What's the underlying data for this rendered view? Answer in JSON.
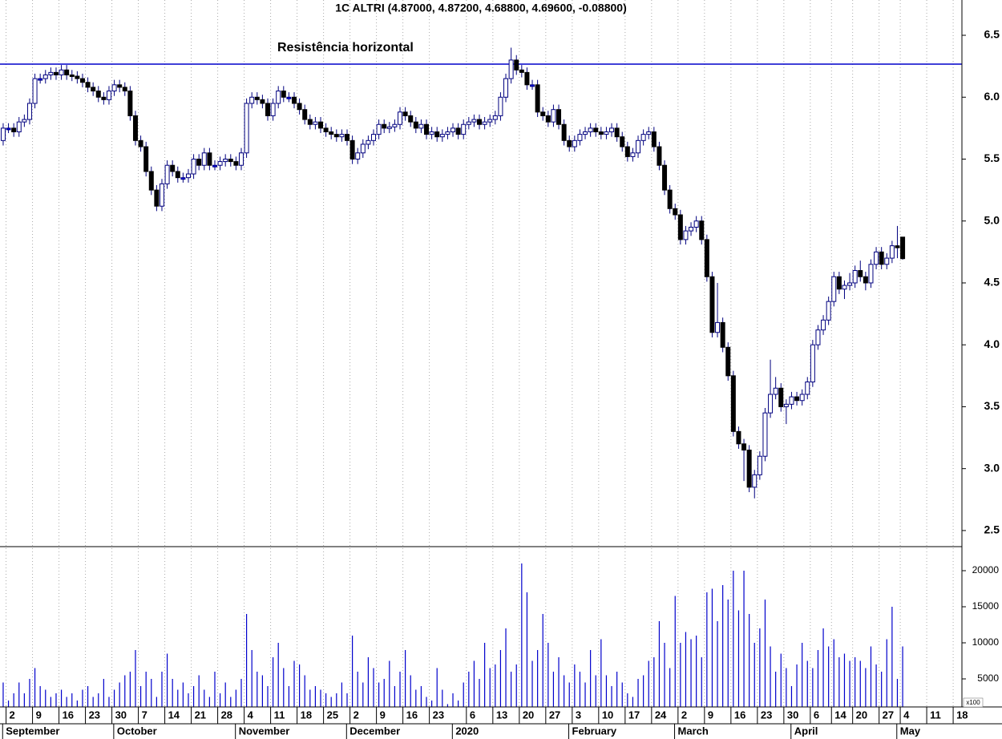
{
  "chart_data": {
    "type": "candlestick",
    "title": "1C ALTRI (4.87000, 4.87200, 4.68800, 4.69600, -0.08800)",
    "annotation": {
      "text": "Resistência horizontal",
      "value": 6.267,
      "color": "#0000cc"
    },
    "x": [
      -1,
      0,
      1,
      2,
      3,
      4,
      5,
      6,
      7,
      8,
      9,
      10,
      11,
      12,
      13,
      14,
      15,
      16,
      17,
      18,
      19,
      20,
      21,
      22,
      23,
      24,
      25,
      26,
      27,
      28,
      29,
      30,
      31,
      32,
      33,
      34,
      35,
      36,
      37,
      38,
      39,
      40,
      41,
      42,
      43,
      44,
      45,
      46,
      47,
      48,
      49,
      50,
      51,
      52,
      53,
      54,
      55,
      56,
      57,
      58,
      59,
      60,
      61,
      62,
      63,
      64,
      65,
      66,
      67,
      68,
      69,
      70,
      71,
      72,
      73,
      74,
      75,
      76,
      77,
      78,
      79,
      80,
      81,
      82,
      83,
      84,
      85,
      86,
      87,
      88,
      89,
      90,
      91,
      92,
      93,
      94,
      95,
      96,
      97,
      98,
      99,
      100,
      101,
      102,
      103,
      104,
      105,
      106,
      107,
      108,
      109,
      110,
      111,
      112,
      113,
      114,
      115,
      116,
      117,
      118,
      119,
      120,
      121,
      122,
      123,
      124,
      125,
      126,
      127,
      128,
      129,
      130,
      131,
      132,
      133,
      134,
      135,
      136,
      137,
      138,
      139,
      140,
      141,
      142,
      143,
      144,
      145,
      146,
      147,
      148,
      149,
      150,
      151,
      152,
      153,
      154,
      155,
      156,
      157,
      158,
      159,
      160,
      161,
      162,
      163,
      164,
      165,
      166,
      167,
      168,
      169
    ],
    "open": [
      5.65,
      5.75,
      5.75,
      5.72,
      5.8,
      5.82,
      5.95,
      6.15,
      6.15,
      6.18,
      6.2,
      6.18,
      6.22,
      6.18,
      6.17,
      6.15,
      6.12,
      6.08,
      6.05,
      6.0,
      5.98,
      6.05,
      6.1,
      6.08,
      6.05,
      5.85,
      5.65,
      5.6,
      5.4,
      5.25,
      5.12,
      5.3,
      5.45,
      5.4,
      5.35,
      5.35,
      5.38,
      5.5,
      5.45,
      5.55,
      5.45,
      5.45,
      5.48,
      5.5,
      5.48,
      5.45,
      5.55,
      5.95,
      6.0,
      5.98,
      5.95,
      5.85,
      5.95,
      6.05,
      6.0,
      6.0,
      5.95,
      5.9,
      5.82,
      5.78,
      5.8,
      5.75,
      5.72,
      5.7,
      5.68,
      5.7,
      5.65,
      5.5,
      5.55,
      5.62,
      5.65,
      5.7,
      5.78,
      5.75,
      5.76,
      5.78,
      5.88,
      5.85,
      5.8,
      5.75,
      5.78,
      5.7,
      5.72,
      5.68,
      5.7,
      5.72,
      5.75,
      5.7,
      5.78,
      5.8,
      5.82,
      5.78,
      5.8,
      5.82,
      5.85,
      6.0,
      6.15,
      6.3,
      6.22,
      6.2,
      6.1,
      6.1,
      5.88,
      5.85,
      5.8,
      5.9,
      5.78,
      5.65,
      5.6,
      5.65,
      5.7,
      5.72,
      5.75,
      5.72,
      5.7,
      5.72,
      5.75,
      5.68,
      5.6,
      5.52,
      5.55,
      5.65,
      5.7,
      5.72,
      5.6,
      5.45,
      5.25,
      5.1,
      5.05,
      4.85,
      4.92,
      4.95,
      5.0,
      4.85,
      4.55,
      4.1,
      4.18,
      3.98,
      3.75,
      3.3,
      3.2,
      3.15,
      2.85,
      2.95,
      3.1,
      3.45,
      3.6,
      3.65,
      3.5,
      3.52,
      3.58,
      3.55,
      3.6,
      3.7,
      4.0,
      4.12,
      4.2,
      4.35,
      4.55,
      4.45,
      4.48,
      4.5,
      4.6,
      4.55,
      4.5,
      4.65,
      4.75,
      4.65,
      4.7,
      4.8,
      4.87
    ],
    "high": [
      5.79,
      5.79,
      5.79,
      5.84,
      5.86,
      5.99,
      6.19,
      6.19,
      6.22,
      6.24,
      6.24,
      6.26,
      6.26,
      6.22,
      6.21,
      6.19,
      6.16,
      6.12,
      6.09,
      6.04,
      6.09,
      6.14,
      6.14,
      6.12,
      6.09,
      5.89,
      5.69,
      5.64,
      5.44,
      5.29,
      5.34,
      5.49,
      5.49,
      5.44,
      5.39,
      5.42,
      5.54,
      5.54,
      5.59,
      5.59,
      5.49,
      5.52,
      5.54,
      5.54,
      5.52,
      5.59,
      5.99,
      6.04,
      6.04,
      6.02,
      5.99,
      5.99,
      6.09,
      6.09,
      6.04,
      6.04,
      5.99,
      5.94,
      5.86,
      5.84,
      5.84,
      5.79,
      5.76,
      5.74,
      5.74,
      5.74,
      5.69,
      5.59,
      5.66,
      5.69,
      5.74,
      5.82,
      5.82,
      5.8,
      5.82,
      5.92,
      5.92,
      5.89,
      5.84,
      5.82,
      5.82,
      5.76,
      5.76,
      5.74,
      5.76,
      5.79,
      5.79,
      5.82,
      5.84,
      5.86,
      5.86,
      5.84,
      5.86,
      5.89,
      6.04,
      6.19,
      6.4,
      6.34,
      6.26,
      6.24,
      6.14,
      6.14,
      5.92,
      5.89,
      5.94,
      5.94,
      5.82,
      5.69,
      5.69,
      5.74,
      5.76,
      5.79,
      5.79,
      5.76,
      5.76,
      5.79,
      5.79,
      5.72,
      5.64,
      5.59,
      5.69,
      5.74,
      5.76,
      5.76,
      5.64,
      5.49,
      5.29,
      5.14,
      5.09,
      4.96,
      4.99,
      5.04,
      5.04,
      4.89,
      4.59,
      4.5,
      4.22,
      4.02,
      3.79,
      3.34,
      3.24,
      3.19,
      2.99,
      3.14,
      3.49,
      3.88,
      3.74,
      3.69,
      3.56,
      3.62,
      3.62,
      3.64,
      3.74,
      4.04,
      4.16,
      4.24,
      4.39,
      4.59,
      4.59,
      4.52,
      4.58,
      4.64,
      4.68,
      4.59,
      4.69,
      4.79,
      4.79,
      4.74,
      4.84,
      4.96,
      4.872
    ],
    "low": [
      5.61,
      5.71,
      5.68,
      5.68,
      5.76,
      5.78,
      5.91,
      6.11,
      6.11,
      6.14,
      6.14,
      6.14,
      6.14,
      6.13,
      6.11,
      6.08,
      6.04,
      6.01,
      5.96,
      5.94,
      5.94,
      6.01,
      6.04,
      6.01,
      5.81,
      5.61,
      5.56,
      5.36,
      5.21,
      5.08,
      5.08,
      5.26,
      5.36,
      5.31,
      5.31,
      5.31,
      5.34,
      5.41,
      5.41,
      5.41,
      5.41,
      5.41,
      5.44,
      5.44,
      5.41,
      5.41,
      5.51,
      5.91,
      5.94,
      5.91,
      5.81,
      5.81,
      5.91,
      5.96,
      5.96,
      5.91,
      5.86,
      5.78,
      5.74,
      5.74,
      5.71,
      5.68,
      5.66,
      5.64,
      5.64,
      5.61,
      5.46,
      5.46,
      5.51,
      5.58,
      5.61,
      5.66,
      5.71,
      5.71,
      5.72,
      5.74,
      5.81,
      5.76,
      5.71,
      5.71,
      5.66,
      5.66,
      5.64,
      5.64,
      5.66,
      5.68,
      5.66,
      5.66,
      5.74,
      5.76,
      5.74,
      5.74,
      5.76,
      5.78,
      5.81,
      5.96,
      6.11,
      6.18,
      6.16,
      6.06,
      6.06,
      5.84,
      5.81,
      5.76,
      5.76,
      5.74,
      5.61,
      5.56,
      5.56,
      5.61,
      5.66,
      5.68,
      5.68,
      5.66,
      5.66,
      5.68,
      5.64,
      5.56,
      5.48,
      5.48,
      5.51,
      5.61,
      5.66,
      5.56,
      5.41,
      5.21,
      5.06,
      5.01,
      4.81,
      4.81,
      4.88,
      4.91,
      4.81,
      4.51,
      4.06,
      4.06,
      3.94,
      3.71,
      3.26,
      3.16,
      2.9,
      2.81,
      2.76,
      2.91,
      3.06,
      3.41,
      3.56,
      3.46,
      3.36,
      3.48,
      3.51,
      3.51,
      3.56,
      3.66,
      3.96,
      4.08,
      4.16,
      4.31,
      4.41,
      4.37,
      4.44,
      4.46,
      4.51,
      4.44,
      4.46,
      4.61,
      4.61,
      4.61,
      4.66,
      4.7,
      4.688
    ],
    "close": [
      5.75,
      5.75,
      5.72,
      5.8,
      5.82,
      5.95,
      6.15,
      6.15,
      6.18,
      6.2,
      6.18,
      6.22,
      6.18,
      6.17,
      6.15,
      6.12,
      6.08,
      6.05,
      6.0,
      5.98,
      6.05,
      6.1,
      6.08,
      6.05,
      5.85,
      5.65,
      5.6,
      5.4,
      5.25,
      5.12,
      5.3,
      5.45,
      5.4,
      5.35,
      5.35,
      5.38,
      5.5,
      5.45,
      5.55,
      5.45,
      5.45,
      5.48,
      5.5,
      5.48,
      5.45,
      5.55,
      5.95,
      6.0,
      5.98,
      5.95,
      5.85,
      5.95,
      6.05,
      6.0,
      6.0,
      5.95,
      5.9,
      5.82,
      5.78,
      5.8,
      5.75,
      5.72,
      5.7,
      5.68,
      5.7,
      5.65,
      5.5,
      5.55,
      5.62,
      5.65,
      5.7,
      5.78,
      5.75,
      5.76,
      5.78,
      5.88,
      5.85,
      5.8,
      5.75,
      5.78,
      5.7,
      5.72,
      5.68,
      5.7,
      5.72,
      5.75,
      5.7,
      5.78,
      5.8,
      5.82,
      5.78,
      5.8,
      5.82,
      5.85,
      6.0,
      6.15,
      6.3,
      6.22,
      6.2,
      6.1,
      6.1,
      5.88,
      5.85,
      5.8,
      5.9,
      5.78,
      5.65,
      5.6,
      5.65,
      5.7,
      5.72,
      5.75,
      5.72,
      5.7,
      5.72,
      5.75,
      5.68,
      5.6,
      5.52,
      5.55,
      5.65,
      5.7,
      5.72,
      5.6,
      5.45,
      5.25,
      5.1,
      5.05,
      4.85,
      4.92,
      4.95,
      5.0,
      4.85,
      4.55,
      4.1,
      4.18,
      3.98,
      3.75,
      3.3,
      3.2,
      3.15,
      2.85,
      2.95,
      3.1,
      3.45,
      3.6,
      3.65,
      3.5,
      3.52,
      3.58,
      3.55,
      3.6,
      3.7,
      4.0,
      4.12,
      4.2,
      4.35,
      4.55,
      4.45,
      4.48,
      4.5,
      4.6,
      4.55,
      4.5,
      4.65,
      4.75,
      4.65,
      4.7,
      4.8,
      4.784,
      4.696
    ],
    "up_color": "#ffffff",
    "down_color": "#000000",
    "flat_color": "#0000ff",
    "edge_color": "#00007f",
    "xlim": [
      -1.6,
      180.2
    ],
    "xticks": [
      {
        "value": 0,
        "label": "2"
      },
      {
        "value": 5,
        "label": "9"
      },
      {
        "value": 10,
        "label": "16"
      },
      {
        "value": 15,
        "label": "23"
      },
      {
        "value": 20,
        "label": "30"
      },
      {
        "value": 25,
        "label": "7"
      },
      {
        "value": 30,
        "label": "14"
      },
      {
        "value": 35,
        "label": "21"
      },
      {
        "value": 40,
        "label": "28"
      },
      {
        "value": 45,
        "label": "4"
      },
      {
        "value": 50,
        "label": "11"
      },
      {
        "value": 55,
        "label": "18"
      },
      {
        "value": 60,
        "label": "25"
      },
      {
        "value": 65,
        "label": "2"
      },
      {
        "value": 70,
        "label": "9"
      },
      {
        "value": 75,
        "label": "16"
      },
      {
        "value": 80,
        "label": "23"
      },
      {
        "value": 87,
        "label": "6"
      },
      {
        "value": 92,
        "label": "13"
      },
      {
        "value": 97,
        "label": "20"
      },
      {
        "value": 102,
        "label": "27"
      },
      {
        "value": 107,
        "label": "3"
      },
      {
        "value": 112,
        "label": "10"
      },
      {
        "value": 117,
        "label": "17"
      },
      {
        "value": 122,
        "label": "24"
      },
      {
        "value": 127,
        "label": "2"
      },
      {
        "value": 132,
        "label": "9"
      },
      {
        "value": 137,
        "label": "16"
      },
      {
        "value": 142,
        "label": "23"
      },
      {
        "value": 147,
        "label": "30"
      },
      {
        "value": 152,
        "label": "6"
      },
      {
        "value": 156,
        "label": "14"
      },
      {
        "value": 160,
        "label": "20"
      },
      {
        "value": 165,
        "label": "27"
      },
      {
        "value": 169,
        "label": "4"
      },
      {
        "value": 174,
        "label": "11"
      },
      {
        "value": 179,
        "label": "18"
      }
    ],
    "month_ticks": [
      {
        "value": -0.5,
        "label": "September"
      },
      {
        "value": 20.5,
        "label": "October"
      },
      {
        "value": 43.5,
        "label": "November"
      },
      {
        "value": 64.5,
        "label": "December"
      },
      {
        "value": 84.5,
        "label": "2020"
      },
      {
        "value": 106.5,
        "label": "February"
      },
      {
        "value": 126.5,
        "label": "March"
      },
      {
        "value": 148.5,
        "label": "April"
      },
      {
        "value": 168.5,
        "label": "May"
      }
    ],
    "ylim": [
      2.37,
      6.785
    ],
    "yticks": [
      2.5,
      {
        "value": 3,
        "label": "3.0"
      },
      3.5,
      {
        "value": 4,
        "label": "4.0"
      },
      4.5,
      {
        "value": 5,
        "label": "5.0"
      },
      5.5,
      {
        "value": 6,
        "label": "6.0"
      },
      6.5
    ],
    "grid": true,
    "volume": {
      "color": "#0000cc",
      "unit": "x100",
      "ylim": [
        1111,
        23333
      ],
      "yticks": [
        5000,
        10000,
        15000,
        20000
      ],
      "values": [
        4500,
        2000,
        3000,
        4500,
        3000,
        5000,
        6500,
        4000,
        3500,
        2500,
        3000,
        3500,
        2500,
        3000,
        2000,
        3500,
        4000,
        2500,
        3000,
        5000,
        2500,
        3500,
        4500,
        5500,
        6000,
        9000,
        4000,
        6000,
        5000,
        2500,
        6000,
        8500,
        5000,
        3500,
        4500,
        3000,
        4000,
        5500,
        3500,
        2500,
        6000,
        3000,
        4500,
        2500,
        3500,
        5000,
        14000,
        9000,
        6000,
        5500,
        4000,
        8000,
        10000,
        6500,
        4000,
        7500,
        7000,
        5500,
        3500,
        4000,
        3500,
        3000,
        2500,
        3000,
        4500,
        3000,
        11000,
        6000,
        4500,
        8000,
        6500,
        4500,
        5000,
        7500,
        4000,
        6000,
        9000,
        5500,
        3500,
        4000,
        2500,
        2000,
        6500,
        3500,
        1500,
        3000,
        2000,
        4500,
        6000,
        7500,
        5000,
        10000,
        6500,
        7000,
        9000,
        12000,
        6000,
        7000,
        21000,
        17000,
        7500,
        9000,
        14000,
        10000,
        6000,
        8000,
        5500,
        4500,
        7000,
        6000,
        4500,
        9000,
        5500,
        10500,
        5500,
        4000,
        6000,
        4500,
        3000,
        2500,
        5000,
        5500,
        7500,
        8000,
        13000,
        10000,
        6500,
        16500,
        10000,
        11500,
        10500,
        11000,
        8000,
        17000,
        17500,
        13000,
        18000,
        16000,
        20000,
        14500,
        20000,
        14000,
        10000,
        12000,
        16000,
        9500,
        6000,
        8500,
        6500,
        4000,
        7000,
        10000,
        7500,
        6500,
        9000,
        12000,
        9500,
        10500,
        8000,
        8500,
        7500,
        8000,
        7500,
        6500,
        9500,
        7000,
        6000,
        10500,
        15000,
        5000,
        9500
      ]
    }
  }
}
